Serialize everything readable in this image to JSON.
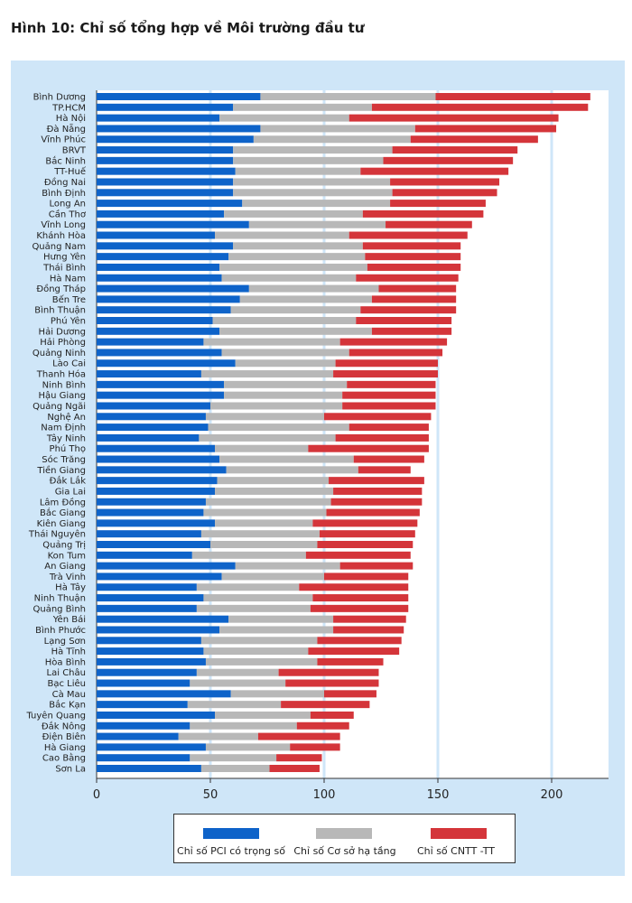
{
  "title": "Hình 10: Chỉ số tổng hợp về Môi trường đầu tư",
  "colors": {
    "pci": "#0e63c9",
    "infra": "#b8b8b8",
    "it": "#d4353a",
    "panel": "#cfe6f8",
    "gridline": "#cfe6f8"
  },
  "chart_data": {
    "type": "bar",
    "orientation": "horizontal",
    "stacked": true,
    "title": "Hình 10: Chỉ số tổng hợp về Môi trường đầu tư",
    "xlim": [
      0,
      225
    ],
    "xticks": [
      0,
      50,
      100,
      150,
      200
    ],
    "grid": true,
    "legend_position": "bottom",
    "categories": [
      "Bình Dương",
      "TP.HCM",
      "Hà Nội",
      "Đà Nẵng",
      "Vĩnh Phúc",
      "BRVT",
      "Bắc Ninh",
      "TT-Huế",
      "Đồng Nai",
      "Bình Định",
      "Long An",
      "Cần Thơ",
      "Vĩnh Long",
      "Khánh Hòa",
      "Quảng Nam",
      "Hưng Yên",
      "Thái Bình",
      "Hà Nam",
      "Đồng Tháp",
      "Bến Tre",
      "Bình Thuận",
      "Phú Yên",
      "Hải Dương",
      "Hải Phòng",
      "Quảng Ninh",
      "Lào Cai",
      "Thanh Hóa",
      "Ninh Bình",
      "Hậu Giang",
      "Quảng Ngãi",
      "Nghệ An",
      "Nam Định",
      "Tây Ninh",
      "Phú Thọ",
      "Sóc Trăng",
      "Tiền Giang",
      "Đắk Lắk",
      "Gia Lai",
      "Lâm Đồng",
      "Bắc Giang",
      "Kiên Giang",
      "Thái Nguyên",
      "Quảng Trị",
      "Kon Tum",
      "An Giang",
      "Trà Vinh",
      "Hà Tây",
      "Ninh Thuận",
      "Quảng Bình",
      "Yên Bái",
      "Bình Phước",
      "Lạng Sơn",
      "Hà Tĩnh",
      "Hòa Bình",
      "Lai Châu",
      "Bạc Liêu",
      "Cà Mau",
      "Bắc Kạn",
      "Tuyên Quang",
      "Đắk Nông",
      "Điện Biên",
      "Hà Giang",
      "Cao Bằng",
      "Sơn La"
    ],
    "series": [
      {
        "name": "Chỉ số PCI có trọng số",
        "color": "#0e63c9",
        "values": [
          72,
          60,
          54,
          72,
          69,
          60,
          60,
          61,
          60,
          60,
          64,
          56,
          67,
          52,
          60,
          58,
          54,
          55,
          67,
          63,
          59,
          51,
          54,
          47,
          55,
          61,
          46,
          56,
          56,
          50,
          48,
          49,
          45,
          52,
          54,
          57,
          53,
          52,
          48,
          47,
          52,
          46,
          50,
          42,
          61,
          55,
          44,
          47,
          44,
          58,
          54,
          46,
          47,
          48,
          44,
          41,
          59,
          40,
          52,
          41,
          36,
          48,
          41,
          46
        ]
      },
      {
        "name": "Chỉ số Cơ sở hạ tầng",
        "color": "#b8b8b8",
        "values": [
          77,
          61,
          57,
          68,
          69,
          70,
          66,
          55,
          69,
          70,
          65,
          61,
          60,
          59,
          57,
          60,
          65,
          59,
          57,
          58,
          57,
          63,
          67,
          60,
          56,
          44,
          58,
          54,
          52,
          58,
          52,
          62,
          60,
          41,
          59,
          58,
          49,
          52,
          55,
          54,
          43,
          52,
          47,
          50,
          46,
          45,
          45,
          48,
          50,
          46,
          50,
          51,
          46,
          49,
          36,
          42,
          41,
          41,
          42,
          47,
          35,
          37,
          38,
          30
        ]
      },
      {
        "name": "Chỉ số CNTT -TT",
        "color": "#d4353a",
        "values": [
          68,
          95,
          92,
          62,
          56,
          55,
          57,
          65,
          48,
          46,
          42,
          53,
          38,
          52,
          43,
          42,
          41,
          45,
          34,
          37,
          42,
          42,
          35,
          47,
          41,
          45,
          46,
          39,
          41,
          41,
          47,
          35,
          41,
          53,
          31,
          23,
          42,
          39,
          40,
          41,
          46,
          42,
          42,
          46,
          32,
          37,
          48,
          42,
          43,
          32,
          31,
          37,
          40,
          29,
          44,
          41,
          23,
          39,
          19,
          23,
          36,
          22,
          20,
          22
        ]
      }
    ]
  },
  "legend": {
    "items": [
      {
        "label": "Chỉ số PCI có trọng số",
        "color": "#0e63c9"
      },
      {
        "label": "Chỉ số Cơ sở hạ tầng",
        "color": "#b8b8b8"
      },
      {
        "label": "Chỉ số CNTT -TT",
        "color": "#d4353a"
      }
    ]
  }
}
